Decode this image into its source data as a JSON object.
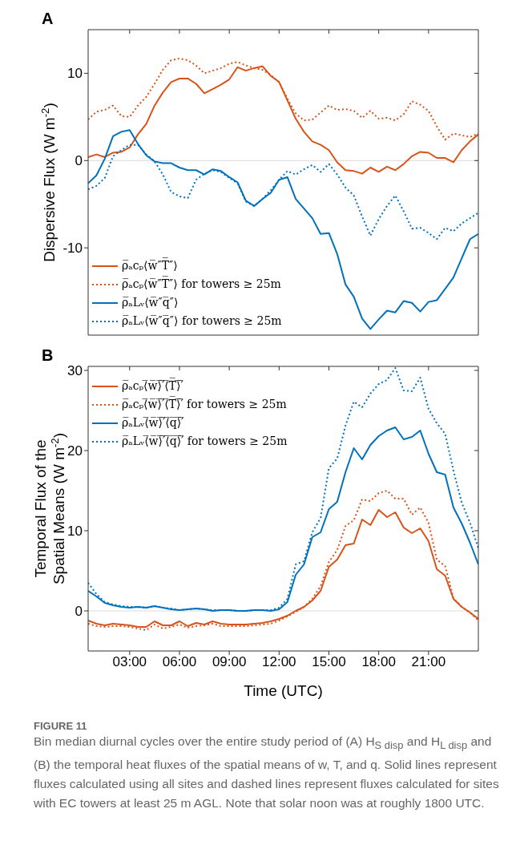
{
  "chart_data": [
    {
      "type": "line",
      "title": "A",
      "ylabel": "Dispersive Flux (W m$^{-2}$)",
      "legend": "bottom left",
      "tick_labels": "y",
      "x": [
        0.5,
        1,
        1.5,
        2,
        2.5,
        3,
        3.5,
        4,
        4.5,
        5,
        5.5,
        6,
        6.5,
        7,
        7.5,
        8,
        8.5,
        9,
        9.5,
        10,
        10.5,
        11,
        11.5,
        12,
        12.5,
        13,
        13.5,
        14,
        14.5,
        15,
        15.5,
        16,
        16.5,
        17,
        17.5,
        18,
        18.5,
        19,
        19.5,
        20,
        20.5,
        21,
        21.5,
        22,
        22.5,
        23,
        23.5,
        24
      ],
      "xlim": [
        0.5,
        24
      ],
      "xticks": [
        {
          "value": 3,
          "label": null
        },
        {
          "value": 6,
          "label": null
        },
        {
          "value": 9,
          "label": null
        },
        {
          "value": 12,
          "label": null
        },
        {
          "value": 15,
          "label": null
        },
        {
          "value": 18,
          "label": null
        },
        {
          "value": 21,
          "label": null
        }
      ],
      "ylim": [
        -20,
        15
      ],
      "yticks": [
        -10,
        0,
        10
      ],
      "ref_lines": [
        {
          "axis": "y",
          "value": 0,
          "color": "#d9d9d9"
        }
      ],
      "series": [
        {
          "name": "ρ̅ₐcₚ⟨w̅″T̅″⟩",
          "color": "#d95319",
          "line_style": "solid",
          "values": [
            0.4,
            0.7,
            0.4,
            0.9,
            1.0,
            1.5,
            3.0,
            4.2,
            6.3,
            7.8,
            9.0,
            9.4,
            9.4,
            8.8,
            7.7,
            8.2,
            8.7,
            9.3,
            10.7,
            10.3,
            10.6,
            10.8,
            9.7,
            9.0,
            6.9,
            4.8,
            3.3,
            2.2,
            1.8,
            1.2,
            -0.2,
            -1.1,
            -1.2,
            -1.5,
            -0.8,
            -1.3,
            -0.7,
            -1.1,
            -0.4,
            0.5,
            1.0,
            0.9,
            0.3,
            0.3,
            -0.2,
            1.2,
            2.2,
            3.0
          ]
        },
        {
          "name": "ρ̅ₐcₚ⟨w̅″T̅″⟩ for towers ≥ 25m",
          "color": "#d95319",
          "line_style": "dotted",
          "values": [
            4.7,
            5.6,
            5.8,
            6.3,
            5.1,
            5.0,
            6.3,
            7.3,
            8.8,
            10.4,
            11.5,
            11.7,
            11.5,
            10.9,
            10.0,
            10.3,
            10.6,
            11.1,
            11.3,
            10.9,
            10.6,
            10.4,
            9.8,
            9.0,
            7.1,
            5.4,
            4.6,
            4.7,
            5.5,
            6.3,
            5.8,
            5.9,
            5.7,
            4.9,
            5.7,
            4.8,
            4.9,
            4.6,
            5.3,
            6.8,
            6.4,
            5.7,
            3.9,
            2.4,
            3.1,
            2.9,
            2.7,
            3.1
          ]
        },
        {
          "name": "ρ̅ₐLᵥ⟨w̅″q̅″⟩",
          "color": "#0072bd",
          "line_style": "solid",
          "values": [
            -2.6,
            -1.7,
            0.2,
            2.8,
            3.3,
            3.5,
            1.9,
            0.6,
            -0.1,
            -0.3,
            -0.3,
            -0.8,
            -1.1,
            -1.1,
            -1.6,
            -1.0,
            -1.2,
            -1.9,
            -2.5,
            -4.6,
            -5.2,
            -4.4,
            -3.7,
            -2.2,
            -1.9,
            -4.4,
            -5.5,
            -6.6,
            -8.4,
            -8.3,
            -10.7,
            -14.2,
            -15.6,
            -18.1,
            -19.3,
            -18.2,
            -17.2,
            -17.4,
            -16.1,
            -16.3,
            -17.3,
            -16.2,
            -16.0,
            -14.7,
            -13.4,
            -11.2,
            -9.0,
            -8.4
          ]
        },
        {
          "name": "ρ̅ₐLᵥ⟨w̅″q̅″⟩ for towers ≥ 25m",
          "color": "#0072bd",
          "line_style": "dotted",
          "values": [
            -3.3,
            -2.9,
            -2.0,
            0.5,
            1.2,
            1.8,
            1.8,
            0.7,
            -0.1,
            -1.6,
            -3.6,
            -4.1,
            -4.3,
            -2.2,
            -1.5,
            -1.1,
            -1.3,
            -2.0,
            -2.6,
            -4.7,
            -5.2,
            -4.4,
            -3.4,
            -2.2,
            -1.2,
            -1.6,
            -1.0,
            -0.5,
            -1.3,
            -0.4,
            -1.6,
            -3.1,
            -4.0,
            -6.4,
            -8.6,
            -6.7,
            -5.2,
            -4.0,
            -5.8,
            -7.8,
            -7.7,
            -8.3,
            -9.0,
            -7.7,
            -8.1,
            -7.2,
            -6.6,
            -6.0
          ]
        }
      ]
    },
    {
      "type": "line",
      "title": "B",
      "ylabel": "Temporal Flux of the\nSpatial Means (W m$^{-2}$)",
      "xlabel": "Time (UTC)",
      "legend": "top left",
      "x": [
        0.5,
        1,
        1.5,
        2,
        2.5,
        3,
        3.5,
        4,
        4.5,
        5,
        5.5,
        6,
        6.5,
        7,
        7.5,
        8,
        8.5,
        9,
        9.5,
        10,
        10.5,
        11,
        11.5,
        12,
        12.5,
        13,
        13.5,
        14,
        14.5,
        15,
        15.5,
        16,
        16.5,
        17,
        17.5,
        18,
        18.5,
        19,
        19.5,
        20,
        20.5,
        21,
        21.5,
        22,
        22.5,
        23,
        23.5,
        24
      ],
      "xlim": [
        0.5,
        24
      ],
      "xticks": [
        {
          "value": 3,
          "label": "03:00"
        },
        {
          "value": 6,
          "label": "06:00"
        },
        {
          "value": 9,
          "label": "09:00"
        },
        {
          "value": 12,
          "label": "12:00"
        },
        {
          "value": 15,
          "label": "15:00"
        },
        {
          "value": 18,
          "label": "18:00"
        },
        {
          "value": 21,
          "label": "21:00"
        }
      ],
      "ylim": [
        -5,
        30.5
      ],
      "yticks": [
        0,
        10,
        20,
        30
      ],
      "ref_lines": [
        {
          "axis": "y",
          "value": 0,
          "color": "#d9d9d9"
        }
      ],
      "annotations": [
        "FIGURE 11",
        "Bin median diurnal cycles over the entire study period of (A) H$_{S disp}$ and H$_{L disp}$ and (B) the temporal heat fluxes of the spatial means of w, T, and q. Solid lines represent fluxes calculated using all sites and dashed lines represent fluxes calculated for sites with EC towers at least 25 m AGL. Note that solar noon was at roughly 1800 UTC."
      ],
      "series": [
        {
          "name": "ρ̅ₐcₚ⟨̅w̅⟩̅′̅⟨̅T̅⟩̅′̅",
          "color": "#d95319",
          "line_style": "solid",
          "values": [
            -1.2,
            -1.6,
            -1.8,
            -1.6,
            -1.7,
            -1.8,
            -2.0,
            -2.0,
            -1.3,
            -1.8,
            -1.8,
            -1.3,
            -1.9,
            -1.5,
            -1.7,
            -1.3,
            -1.6,
            -1.7,
            -1.7,
            -1.7,
            -1.6,
            -1.5,
            -1.3,
            -1.0,
            -0.6,
            0,
            0.5,
            1.3,
            2.5,
            5.5,
            6.4,
            8.2,
            8.4,
            11.4,
            10.7,
            12.6,
            11.7,
            12.3,
            10.4,
            9.7,
            10.3,
            8.7,
            5.2,
            4.4,
            1.5,
            0.5,
            -0.2,
            -1.0
          ]
        },
        {
          "name": "ρ̅ₐcₚ⟨̅w̅⟩̅′̅⟨̅T̅⟩̅′̅ for towers ≥ 25m",
          "color": "#d95319",
          "line_style": "dotted",
          "values": [
            -1.6,
            -1.9,
            -2.0,
            -1.9,
            -1.9,
            -2.0,
            -2.2,
            -2.4,
            -1.7,
            -2.2,
            -2.0,
            -1.7,
            -2.1,
            -1.9,
            -1.8,
            -1.6,
            -1.9,
            -1.9,
            -1.9,
            -1.9,
            -1.8,
            -1.7,
            -1.6,
            -1.2,
            -0.7,
            -0.1,
            0.5,
            1.5,
            3.1,
            6.1,
            7.6,
            10.6,
            11.3,
            13.9,
            13.7,
            14.7,
            15.0,
            14.0,
            14.0,
            12.0,
            12.9,
            11.0,
            6.4,
            5.6,
            1.6,
            0.5,
            -0.2,
            -1.2
          ]
        },
        {
          "name": "ρ̅ₐLᵥ⟨̅w̅⟩̅′̅⟨̅q̅⟩̅′̅",
          "color": "#0072bd",
          "line_style": "solid",
          "values": [
            2.5,
            1.8,
            1.0,
            0.7,
            0.5,
            0.4,
            0.5,
            0.4,
            0.6,
            0.4,
            0.2,
            0.1,
            0.2,
            0.3,
            0.2,
            0,
            0.1,
            0.1,
            0,
            0,
            0.1,
            0.1,
            0,
            0.2,
            1.1,
            4.5,
            5.8,
            9.2,
            9.8,
            12.7,
            13.6,
            17.3,
            20.3,
            18.9,
            20.7,
            21.8,
            22.5,
            22.9,
            21.4,
            21.7,
            22.5,
            19.6,
            17.3,
            17.0,
            12.9,
            10.9,
            8.5,
            5.8
          ]
        },
        {
          "name": "ρ̅ₐLᵥ⟨̅w̅⟩̅′̅⟨̅q̅⟩̅′̅ for towers ≥ 25m",
          "color": "#0072bd",
          "line_style": "dotted",
          "values": [
            3.5,
            2.1,
            1.1,
            0.8,
            0.6,
            0.5,
            0.5,
            0.4,
            0.6,
            0.4,
            0.3,
            0.1,
            0.2,
            0.3,
            0.2,
            0.1,
            0.1,
            0.1,
            0,
            0,
            0.1,
            0.1,
            0.1,
            0.4,
            1.5,
            5.8,
            6.2,
            9.8,
            11.6,
            17.8,
            19.0,
            23.1,
            26.1,
            25.4,
            27.1,
            28.3,
            28.8,
            30.3,
            27.5,
            27.4,
            29.1,
            25.2,
            23.4,
            22.1,
            17.5,
            13.5,
            11.0,
            7.8
          ]
        }
      ]
    }
  ]
}
